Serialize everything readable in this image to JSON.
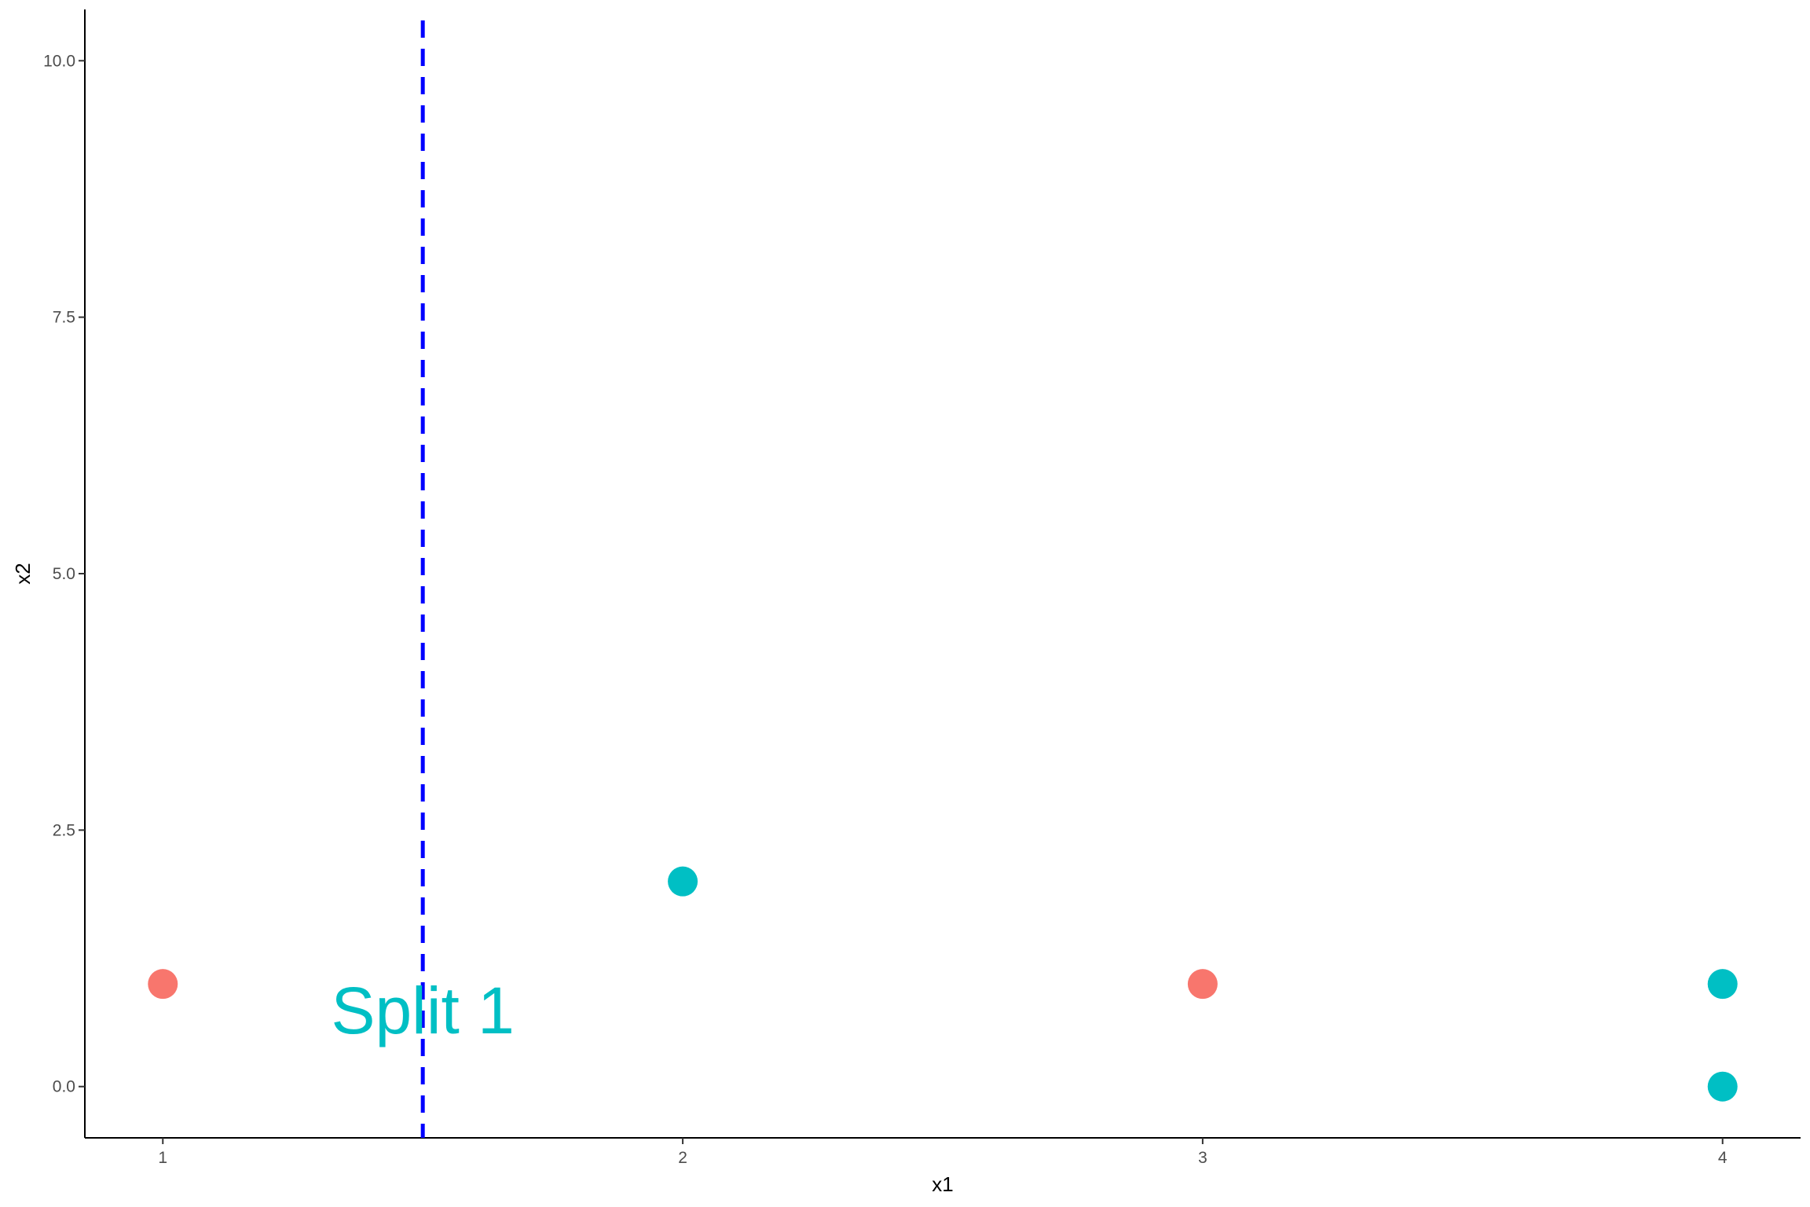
{
  "chart_data": {
    "type": "scatter",
    "xlabel": "x1",
    "ylabel": "x2",
    "xlim": [
      0.85,
      4.15
    ],
    "ylim": [
      -0.5,
      10.5
    ],
    "x_ticks": [
      1,
      2,
      3,
      4
    ],
    "x_tick_labels": [
      "1",
      "2",
      "3",
      "4"
    ],
    "y_ticks": [
      0,
      2.5,
      5,
      7.5,
      10
    ],
    "y_tick_labels": [
      "0.0",
      "2.5",
      "5.0",
      "7.5",
      "10.0"
    ],
    "grid": false,
    "legend": "none",
    "points": [
      {
        "x": 1,
        "y": 1,
        "color": "#F8766D"
      },
      {
        "x": 2,
        "y": 2,
        "color": "#00BFC4"
      },
      {
        "x": 3,
        "y": 1,
        "color": "#F8766D"
      },
      {
        "x": 4,
        "y": 1,
        "color": "#00BFC4"
      },
      {
        "x": 4,
        "y": 0,
        "color": "#00BFC4"
      }
    ],
    "vlines": [
      {
        "x": 1.5,
        "color": "#0000FF",
        "style": "dashed"
      }
    ],
    "annotations": [
      {
        "text": "Split 1",
        "x": 1.5,
        "y": 0.75,
        "color": "#00BFC4"
      }
    ]
  }
}
